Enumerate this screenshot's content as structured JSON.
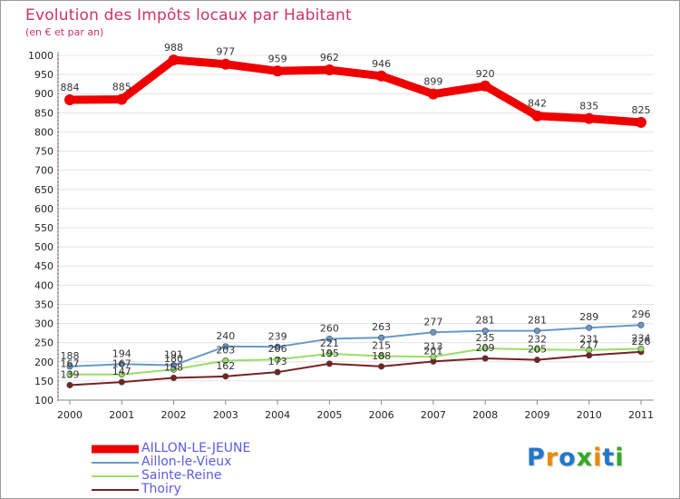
{
  "chart_data": {
    "type": "line",
    "title": "Evolution des Impôts locaux par Habitant",
    "subtitle": "(en € et par an)",
    "xlabel": "",
    "ylabel": "",
    "ylim": [
      100,
      1000
    ],
    "yticks": [
      100,
      150,
      200,
      250,
      300,
      350,
      400,
      450,
      500,
      550,
      600,
      650,
      700,
      750,
      800,
      850,
      900,
      950,
      1000
    ],
    "grid": true,
    "legend_position": "bottom-left",
    "categories": [
      "2000",
      "2001",
      "2002",
      "2003",
      "2004",
      "2005",
      "2006",
      "2007",
      "2008",
      "2009",
      "2010",
      "2011"
    ],
    "series": [
      {
        "name": "AILLON-LE-JEUNE",
        "color": "#ee0000",
        "values": [
          884,
          885,
          988,
          977,
          959,
          962,
          946,
          899,
          920,
          842,
          835,
          825
        ],
        "labels": [
          "884",
          "885",
          "988",
          "977",
          "959",
          "962",
          "946",
          "899",
          "920",
          "842",
          "835",
          "825"
        ]
      },
      {
        "name": "Aillon-le-Vieux",
        "color": "#6699cc",
        "values": [
          188,
          194,
          191,
          240,
          239,
          260,
          263,
          277,
          281,
          281,
          289,
          296
        ],
        "labels": [
          "188",
          "194",
          "191",
          "240",
          "239",
          "260",
          "263",
          "277",
          "281",
          "281",
          "289",
          "296"
        ]
      },
      {
        "name": "Sainte-Reine",
        "color": "#99dd66",
        "values": [
          167,
          167,
          180,
          203,
          206,
          221,
          215,
          213,
          235,
          232,
          231,
          234
        ],
        "labels": [
          "167",
          "167",
          "180",
          "203",
          "206",
          "221",
          "215",
          "213",
          "235",
          "232",
          "231",
          "234"
        ]
      },
      {
        "name": "Thoiry",
        "color": "#772222",
        "values": [
          139,
          147,
          158,
          162,
          173,
          195,
          188,
          201,
          209,
          205,
          217,
          226
        ],
        "labels": [
          "139",
          "147",
          "158",
          "162",
          "173",
          "195",
          "188",
          "201",
          "209",
          "205",
          "217",
          "226"
        ]
      }
    ]
  },
  "brand": {
    "letters": [
      "P",
      "r",
      "o",
      "x",
      "i",
      "t",
      "i"
    ],
    "colors": [
      "#2277cc",
      "#ee8800",
      "#2277cc",
      "#33aa22",
      "#ee8800",
      "#2277cc",
      "#33aa22"
    ]
  }
}
